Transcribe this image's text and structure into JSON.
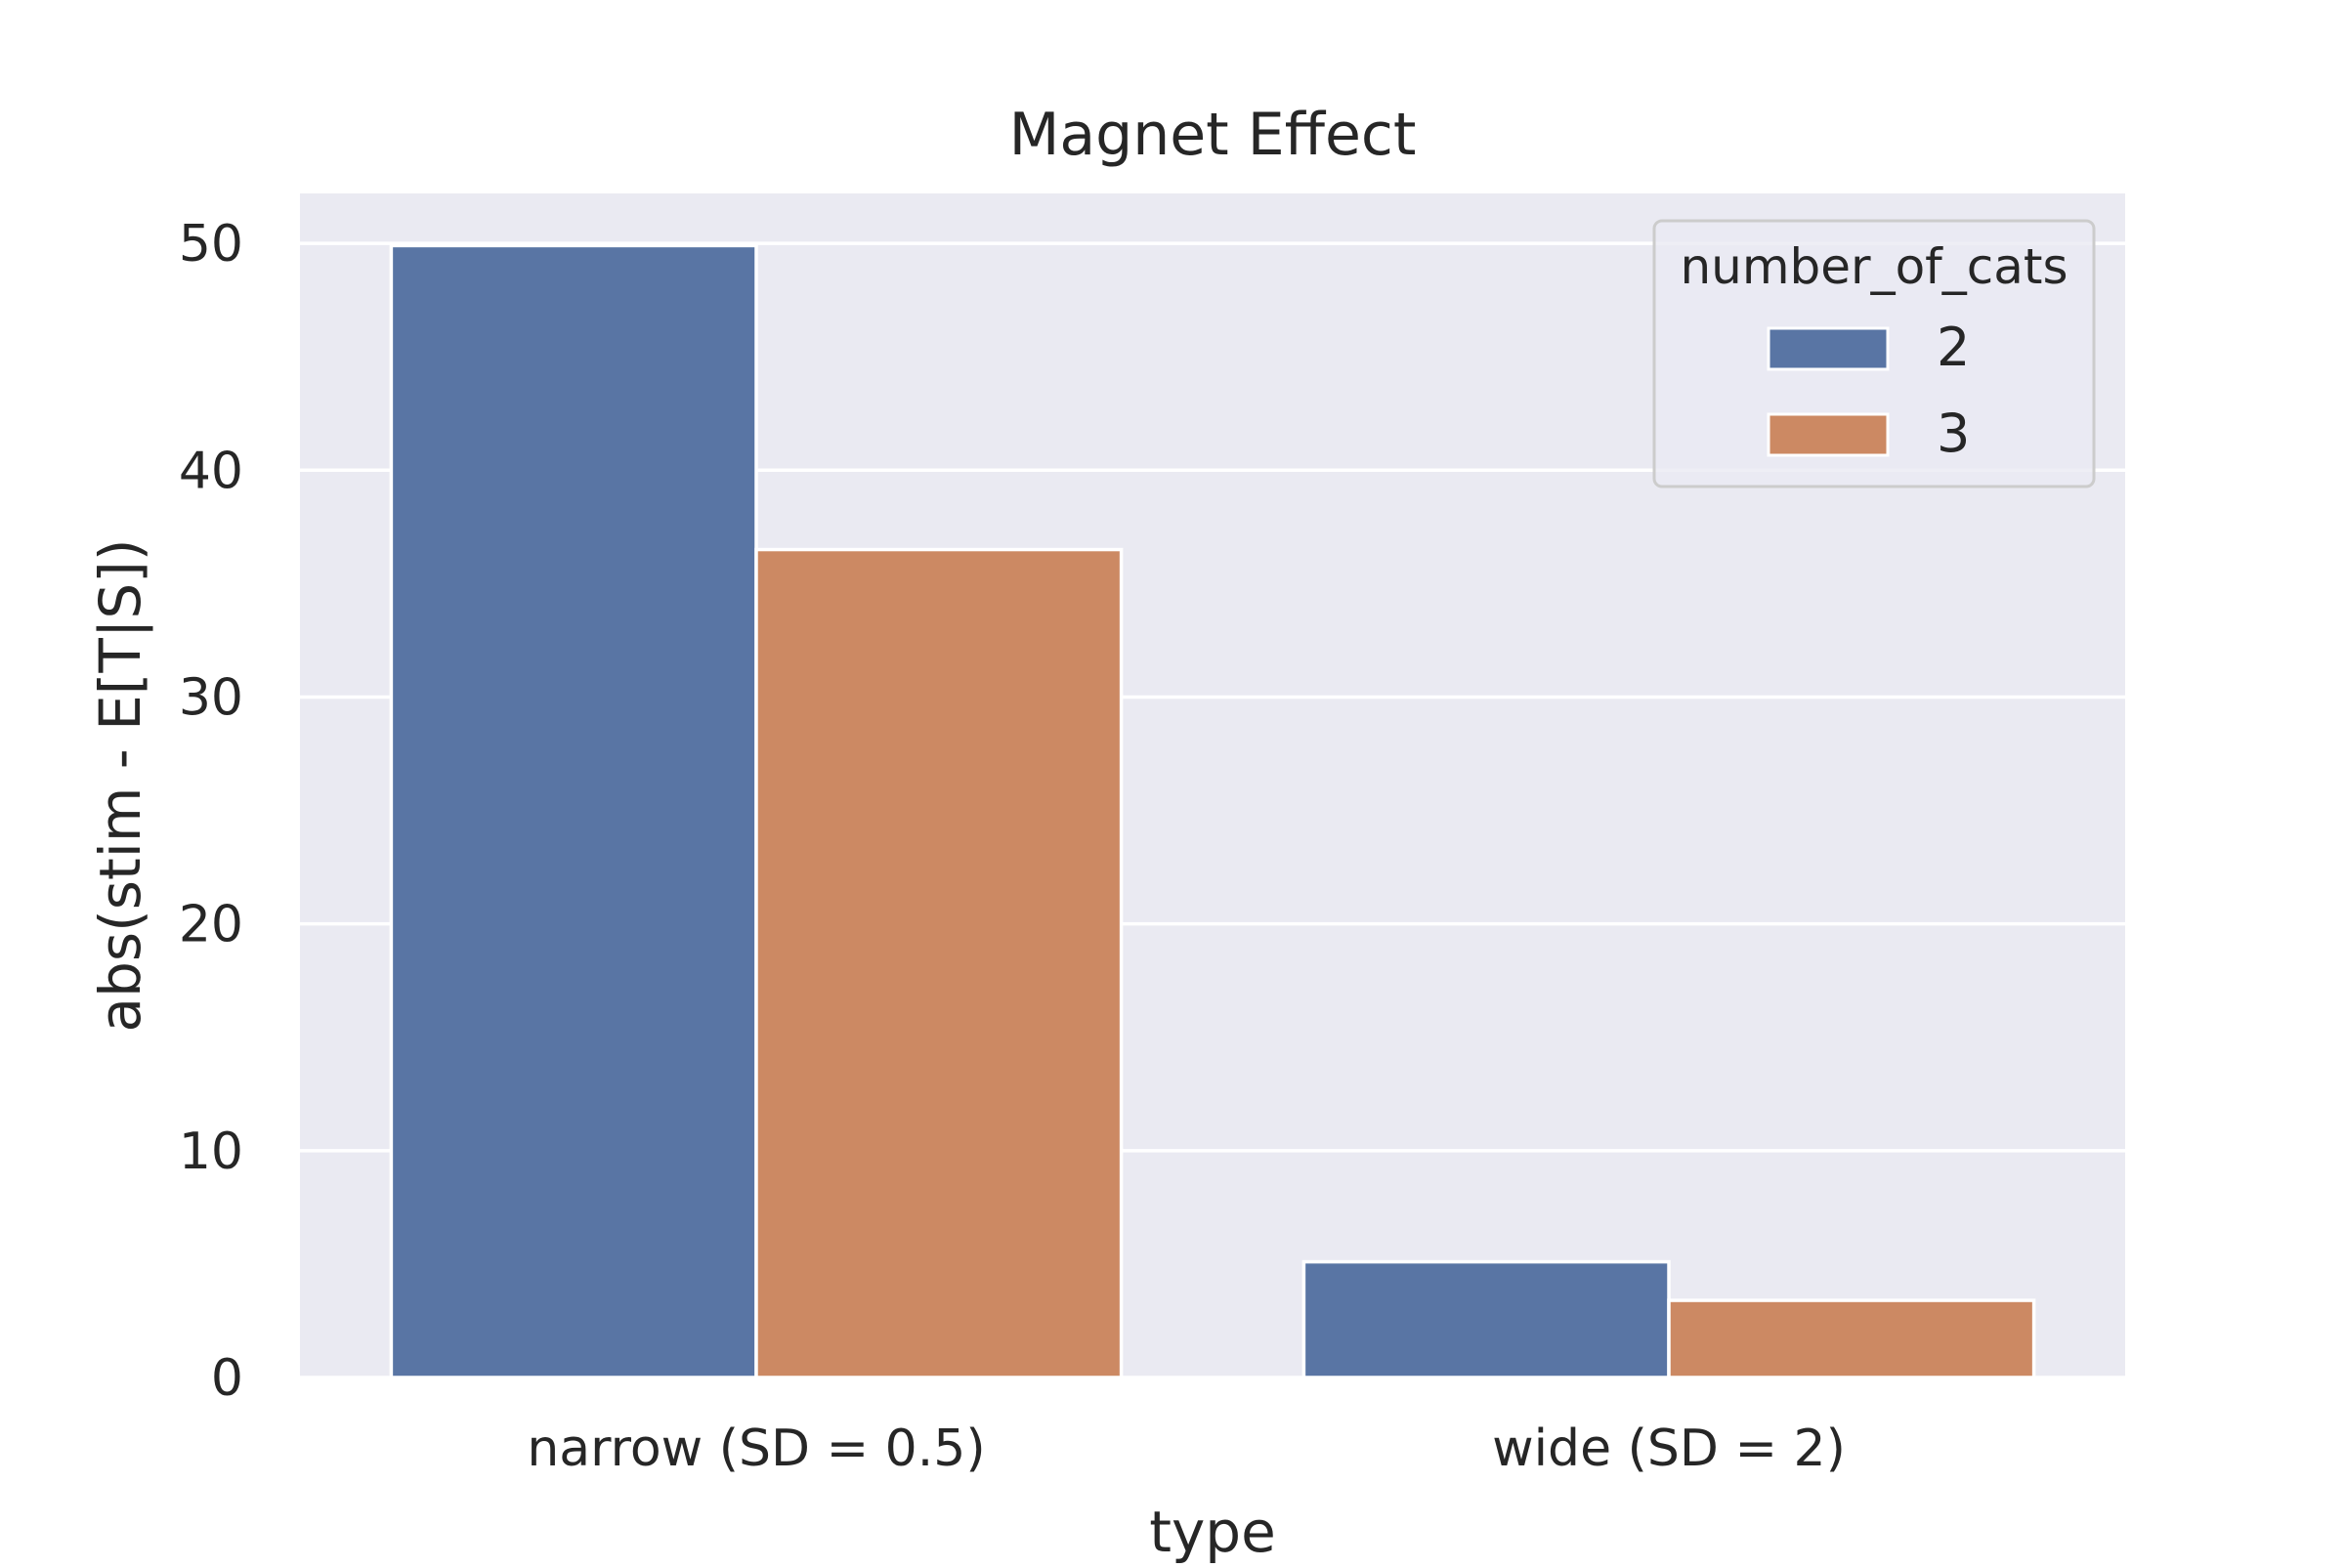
{
  "chart_data": {
    "type": "bar",
    "title": "Magnet Effect",
    "xlabel": "type",
    "ylabel": "abs(stim - E[T|S])",
    "categories": [
      "narrow (SD = 0.5)",
      "wide (SD = 2)"
    ],
    "series": [
      {
        "name": "2",
        "values": [
          49.9,
          5.1
        ],
        "color": "#5975a4"
      },
      {
        "name": "3",
        "values": [
          36.5,
          3.4
        ],
        "color": "#cc8963"
      }
    ],
    "ylim": [
      0,
      52.2
    ],
    "yticks": [
      0,
      10,
      20,
      30,
      40,
      50
    ],
    "grid": true,
    "legend": {
      "title": "number_of_cats",
      "placement": "top-right"
    },
    "colors": {
      "plot_background": "#eaeaf2",
      "grid": "#ffffff"
    }
  }
}
